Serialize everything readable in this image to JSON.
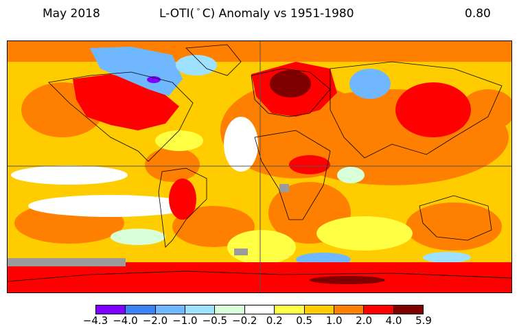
{
  "header": {
    "date": "May 2018",
    "title_prefix": "L-OTI(",
    "title_degree": "°",
    "title_suffix": "C) Anomaly vs 1951-1980",
    "global_mean": "0.80"
  },
  "colorbar": {
    "colors": [
      "#7f00ff",
      "#3b82f6",
      "#6fb8ff",
      "#9ee0ff",
      "#d8ffd8",
      "#ffffff",
      "#ffff44",
      "#ffcc00",
      "#ff8000",
      "#ff0000",
      "#800000"
    ],
    "tick_labels": [
      "−4.3",
      "−4.0",
      "−2.0",
      "−1.0",
      "−0.5",
      "−0.2",
      "0.2",
      "0.5",
      "1.0",
      "2.0",
      "4.0",
      "5.9"
    ]
  },
  "map": {
    "background_color": "#ffcc00",
    "missing_data_color": "#9b9b9b"
  }
}
